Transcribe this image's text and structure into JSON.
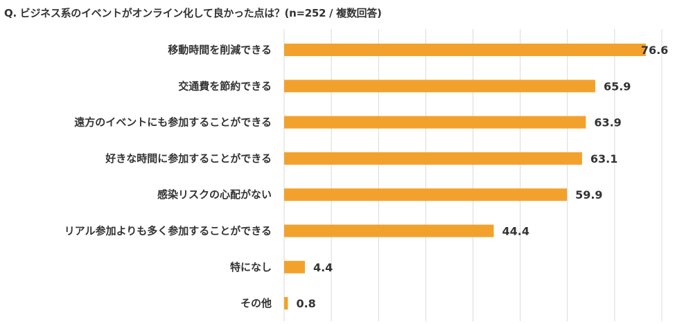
{
  "chart_data": {
    "type": "bar",
    "orientation": "horizontal",
    "title": "Q. ビジネス系のイベントがオンライン化して良かった点は？(n=252 / 複数回答)",
    "categories": [
      "移動時間を削減できる",
      "交通費を節約できる",
      "遠方のイベントにも参加することができる",
      "好きな時間に参加することができる",
      "感染リスクの心配がない",
      "リアル参加よりも多く参加することができる",
      "特になし",
      "その他"
    ],
    "values": [
      76.6,
      65.9,
      63.9,
      63.1,
      59.9,
      44.4,
      4.4,
      0.8
    ],
    "xlim": [
      0,
      80
    ],
    "grid": true,
    "xlabel": "",
    "ylabel": "",
    "bar_color": "#F2A22C"
  }
}
